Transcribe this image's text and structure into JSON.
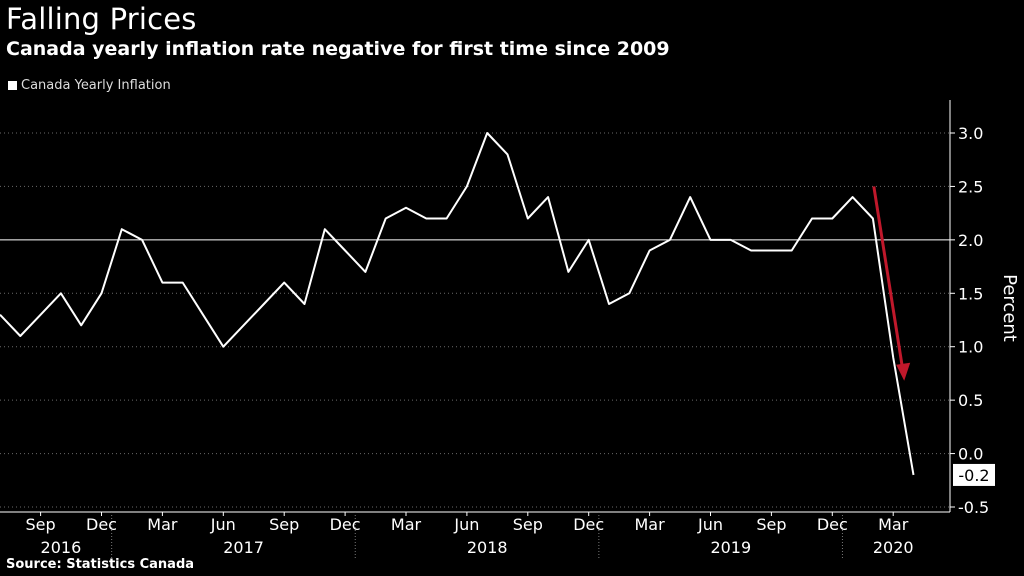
{
  "title": "Falling Prices",
  "subtitle": "Canada yearly inflation rate negative for first time since 2009",
  "source": "Source: Statistics Canada",
  "chart_data": {
    "type": "line",
    "legend": "Canada Yearly Inflation",
    "ylabel": "Percent",
    "ylim": [
      -0.5,
      3.3
    ],
    "yticks": [
      -0.5,
      0.0,
      0.5,
      1.0,
      1.5,
      2.0,
      2.5,
      3.0
    ],
    "ytick_labels": [
      "-0.5",
      "0.0",
      "0.5",
      "1.0",
      "1.5",
      "2.0",
      "2.5",
      "3.0"
    ],
    "reference_line": 2.0,
    "grid": "horizontal dotted",
    "legend_position": "top-left",
    "x": [
      "2016-07",
      "2016-08",
      "2016-09",
      "2016-10",
      "2016-11",
      "2016-12",
      "2017-01",
      "2017-02",
      "2017-03",
      "2017-04",
      "2017-05",
      "2017-06",
      "2017-07",
      "2017-08",
      "2017-09",
      "2017-10",
      "2017-11",
      "2017-12",
      "2018-01",
      "2018-02",
      "2018-03",
      "2018-04",
      "2018-05",
      "2018-06",
      "2018-07",
      "2018-08",
      "2018-09",
      "2018-10",
      "2018-11",
      "2018-12",
      "2019-01",
      "2019-02",
      "2019-03",
      "2019-04",
      "2019-05",
      "2019-06",
      "2019-07",
      "2019-08",
      "2019-09",
      "2019-10",
      "2019-11",
      "2019-12",
      "2020-01",
      "2020-02",
      "2020-03",
      "2020-04"
    ],
    "series": [
      {
        "name": "Canada Yearly Inflation",
        "color": "#ffffff",
        "values": [
          1.3,
          1.1,
          1.3,
          1.5,
          1.2,
          1.5,
          2.1,
          2.0,
          1.6,
          1.6,
          1.3,
          1.0,
          1.2,
          1.4,
          1.6,
          1.4,
          2.1,
          1.9,
          1.7,
          2.2,
          2.3,
          2.2,
          2.2,
          2.5,
          3.0,
          2.8,
          2.2,
          2.4,
          1.7,
          2.0,
          1.4,
          1.5,
          1.9,
          2.0,
          2.4,
          2.0,
          2.0,
          1.9,
          1.9,
          1.9,
          2.2,
          2.2,
          2.4,
          2.2,
          0.9,
          -0.2
        ]
      }
    ],
    "last_value_label": "-0.2",
    "x_month_labels": [
      "Sep",
      "Dec",
      "Mar",
      "Jun",
      "Sep",
      "Dec",
      "Mar",
      "Jun",
      "Sep",
      "Dec",
      "Mar",
      "Jun",
      "Sep",
      "Dec",
      "Mar"
    ],
    "x_month_label_dates": [
      "2016-09",
      "2016-12",
      "2017-03",
      "2017-06",
      "2017-09",
      "2017-12",
      "2018-03",
      "2018-06",
      "2018-09",
      "2018-12",
      "2019-03",
      "2019-06",
      "2019-09",
      "2019-12",
      "2020-03"
    ],
    "x_year_labels": [
      {
        "label": "2016",
        "center": "2016-10"
      },
      {
        "label": "2017",
        "center": "2017-07"
      },
      {
        "label": "2018",
        "center": "2018-07"
      },
      {
        "label": "2019",
        "center": "2019-07"
      },
      {
        "label": "2020",
        "center": "2020-03"
      }
    ],
    "year_boundaries": [
      "2017-01",
      "2018-01",
      "2019-01",
      "2020-01"
    ],
    "annotation_arrow": {
      "color": "#c0182b",
      "from_date": "2020-02",
      "from_value": 2.5,
      "to_date": "2020-03",
      "to_value": 0.7
    }
  }
}
